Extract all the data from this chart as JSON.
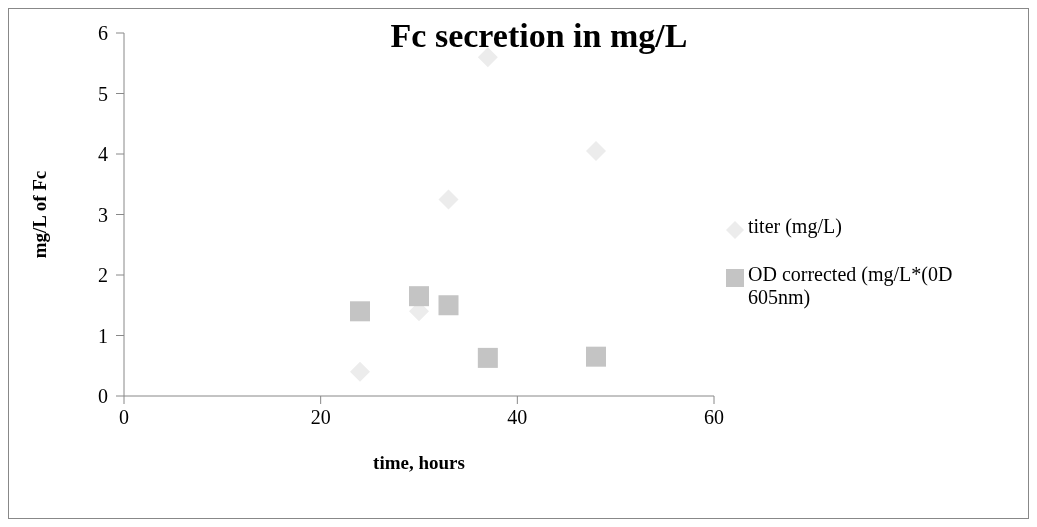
{
  "chart_data": {
    "type": "scatter",
    "title": "Fc secretion in mg/L",
    "xlabel": "time, hours",
    "ylabel": "mg/L of Fc",
    "xlim": [
      0,
      60
    ],
    "xticks": [
      0,
      20,
      40,
      60
    ],
    "ylim": [
      0,
      6
    ],
    "yticks": [
      0,
      1,
      2,
      3,
      4,
      5,
      6
    ],
    "grid": false,
    "legend": "right",
    "series": [
      {
        "name": "titer (mg/L)",
        "color": "#ececec",
        "marker": "diamond",
        "x": [
          24,
          30,
          33,
          37,
          48
        ],
        "values": [
          0.4,
          1.4,
          3.25,
          5.6,
          4.05
        ]
      },
      {
        "name": "OD corrected (mg/L*(0D 605nm)",
        "color": "#c4c4c4",
        "marker": "square",
        "x": [
          24,
          30,
          33,
          37,
          48
        ],
        "values": [
          1.4,
          1.65,
          1.5,
          0.63,
          0.65
        ]
      }
    ]
  }
}
